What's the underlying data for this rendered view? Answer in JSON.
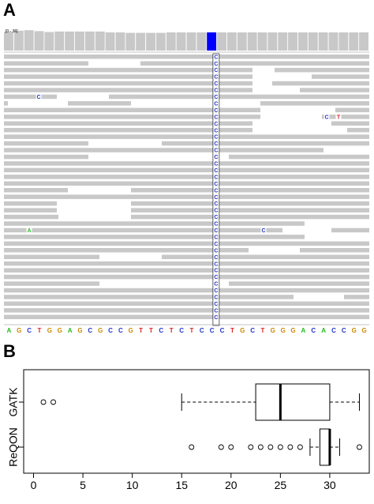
{
  "panel_a": {
    "label": "A",
    "coverage_track_label": "[0 - 36]",
    "highlight_column_index": 41,
    "variant_column_index": 41,
    "variant_base": "C",
    "reference_sequence": "AGCTGGAGCGCCGTTCTCTCCCTGCTGGGACACCGG",
    "base_colors": {
      "A": "#22bb22",
      "C": "#2233cc",
      "G": "#cc8800",
      "T": "#dd2222"
    },
    "colors": {
      "read": "#c8c8c8",
      "coverage": "#c8c8c8",
      "coverage_variant": "#0000ff",
      "highlight_box": "#000000"
    },
    "mismatches": [
      {
        "row": 6,
        "base": "C"
      },
      {
        "row": 9,
        "base": "C"
      },
      {
        "row": 9,
        "base": "T"
      },
      {
        "row": 26,
        "base": "A"
      },
      {
        "row": 26,
        "base": "C"
      }
    ]
  },
  "panel_b": {
    "label": "B",
    "chart_data": {
      "type": "boxplot",
      "orientation": "horizontal",
      "xlim": [
        -1,
        34
      ],
      "xticks": [
        0,
        5,
        10,
        15,
        20,
        25,
        30
      ],
      "categories": [
        "ReQON",
        "GATK"
      ],
      "series": [
        {
          "name": "GATK",
          "min": 15,
          "q1": 22.5,
          "median": 25,
          "q3": 30,
          "max": 33,
          "outliers": [
            1,
            2
          ]
        },
        {
          "name": "ReQON",
          "min": 28,
          "q1": 29,
          "median": 30,
          "q3": 30,
          "max": 31,
          "outliers": [
            16,
            19,
            20,
            22,
            23,
            24,
            25,
            26,
            27,
            33
          ]
        }
      ]
    }
  }
}
